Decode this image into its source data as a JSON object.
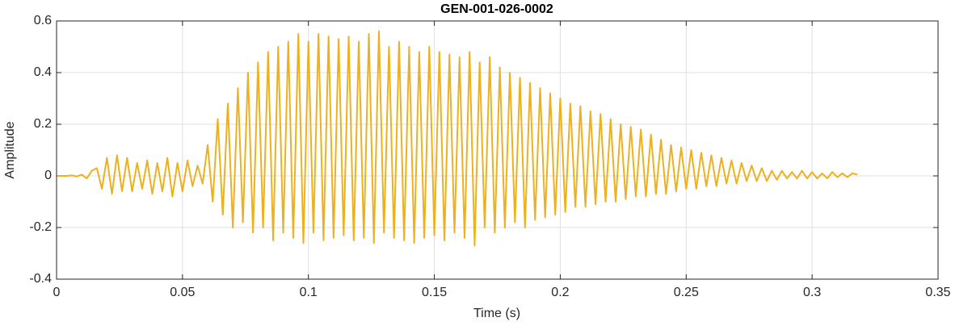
{
  "chart_data": {
    "type": "line",
    "title": "GEN-001-026-0002",
    "xlabel": "Time (s)",
    "ylabel": "Amplitude",
    "color": "#EDB120",
    "grid": true,
    "xlim": [
      0,
      0.35
    ],
    "ylim": [
      -0.4,
      0.6
    ],
    "xticks": [
      0,
      0.05,
      0.1,
      0.15,
      0.2,
      0.25,
      0.3,
      0.35
    ],
    "yticks": [
      -0.4,
      -0.2,
      0,
      0.2,
      0.4,
      0.6
    ],
    "x": [
      0,
      0.002,
      0.004,
      0.006,
      0.008,
      0.01,
      0.012,
      0.014,
      0.016,
      0.018,
      0.02,
      0.022,
      0.024,
      0.026,
      0.028,
      0.03,
      0.032,
      0.034,
      0.036,
      0.038,
      0.04,
      0.042,
      0.044,
      0.046,
      0.048,
      0.05,
      0.052,
      0.054,
      0.056,
      0.058,
      0.06,
      0.062,
      0.064,
      0.066,
      0.068,
      0.07,
      0.072,
      0.074,
      0.076,
      0.078,
      0.08,
      0.082,
      0.084,
      0.086,
      0.088,
      0.09,
      0.092,
      0.094,
      0.096,
      0.098,
      0.1,
      0.102,
      0.104,
      0.106,
      0.108,
      0.11,
      0.112,
      0.114,
      0.116,
      0.118,
      0.12,
      0.122,
      0.124,
      0.126,
      0.128,
      0.13,
      0.132,
      0.134,
      0.136,
      0.138,
      0.14,
      0.142,
      0.144,
      0.146,
      0.148,
      0.15,
      0.152,
      0.154,
      0.156,
      0.158,
      0.16,
      0.162,
      0.164,
      0.166,
      0.168,
      0.17,
      0.172,
      0.174,
      0.176,
      0.178,
      0.18,
      0.182,
      0.184,
      0.186,
      0.188,
      0.19,
      0.192,
      0.194,
      0.196,
      0.198,
      0.2,
      0.202,
      0.204,
      0.206,
      0.208,
      0.21,
      0.212,
      0.214,
      0.216,
      0.218,
      0.22,
      0.222,
      0.224,
      0.226,
      0.228,
      0.23,
      0.232,
      0.234,
      0.236,
      0.238,
      0.24,
      0.242,
      0.244,
      0.246,
      0.248,
      0.25,
      0.252,
      0.254,
      0.256,
      0.258,
      0.26,
      0.262,
      0.264,
      0.266,
      0.268,
      0.27,
      0.272,
      0.274,
      0.276,
      0.278,
      0.28,
      0.282,
      0.284,
      0.286,
      0.288,
      0.29,
      0.292,
      0.294,
      0.296,
      0.298,
      0.3,
      0.302,
      0.304,
      0.306,
      0.308,
      0.31,
      0.312,
      0.314,
      0.316,
      0.318
    ],
    "values": [
      0,
      0,
      0,
      0.002,
      -0.002,
      0.005,
      -0.01,
      0.02,
      0.03,
      -0.05,
      0.07,
      -0.07,
      0.08,
      -0.06,
      0.07,
      -0.06,
      0.05,
      -0.05,
      0.06,
      -0.07,
      0.05,
      -0.06,
      0.07,
      -0.08,
      0.05,
      -0.06,
      0.06,
      -0.04,
      0.04,
      -0.03,
      0.12,
      -0.1,
      0.22,
      -0.15,
      0.28,
      -0.2,
      0.34,
      -0.18,
      0.4,
      -0.22,
      0.44,
      -0.2,
      0.48,
      -0.25,
      0.5,
      -0.22,
      0.52,
      -0.24,
      0.55,
      -0.26,
      0.52,
      -0.22,
      0.55,
      -0.25,
      0.54,
      -0.24,
      0.53,
      -0.23,
      0.54,
      -0.25,
      0.52,
      -0.24,
      0.55,
      -0.26,
      0.56,
      -0.22,
      0.5,
      -0.24,
      0.52,
      -0.25,
      0.5,
      -0.26,
      0.48,
      -0.24,
      0.5,
      -0.23,
      0.48,
      -0.25,
      0.47,
      -0.22,
      0.46,
      -0.24,
      0.48,
      -0.27,
      0.44,
      -0.2,
      0.46,
      -0.22,
      0.42,
      -0.2,
      0.4,
      -0.18,
      0.38,
      -0.2,
      0.36,
      -0.17,
      0.34,
      -0.16,
      0.32,
      -0.15,
      0.3,
      -0.14,
      0.28,
      -0.12,
      0.27,
      -0.12,
      0.25,
      -0.11,
      0.24,
      -0.1,
      0.22,
      -0.1,
      0.2,
      -0.09,
      0.19,
      -0.08,
      0.18,
      -0.08,
      0.16,
      -0.07,
      0.14,
      -0.07,
      0.12,
      -0.06,
      0.11,
      -0.05,
      0.1,
      -0.05,
      0.09,
      -0.04,
      0.08,
      -0.04,
      0.07,
      -0.03,
      0.06,
      -0.03,
      0.05,
      -0.02,
      0.04,
      -0.02,
      0.03,
      -0.02,
      0.02,
      -0.015,
      0.02,
      -0.01,
      0.015,
      -0.01,
      0.02,
      -0.01,
      0.015,
      -0.01,
      0.01,
      -0.01,
      0.015,
      -0.005,
      0.01,
      -0.005,
      0.01,
      0.005
    ]
  }
}
